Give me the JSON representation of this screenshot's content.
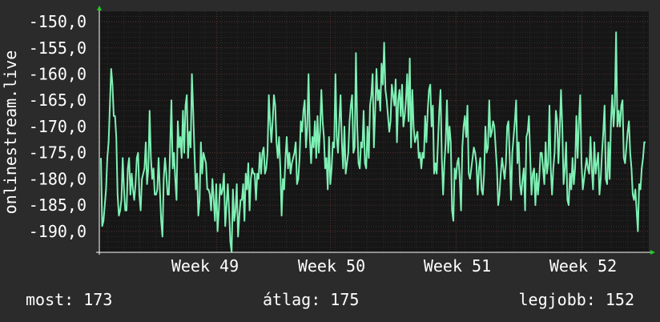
{
  "chart_data": {
    "type": "line",
    "ylabel": "onlinestream.live",
    "ylim": [
      -194,
      -148
    ],
    "y_ticks": [
      -150,
      -155,
      -160,
      -165,
      -170,
      -175,
      -180,
      -185,
      -190
    ],
    "y_tick_labels": [
      "-150,0",
      "-155,0",
      "-160,0",
      "-165,0",
      "-170,0",
      "-175,0",
      "-180,0",
      "-185,0",
      "-190,0"
    ],
    "x_tick_labels": [
      "Week 49",
      "Week 50",
      "Week 51",
      "Week 52"
    ],
    "grid": true,
    "line_color": "#7ef0b4",
    "series": [
      {
        "values": [
          -176,
          -189,
          -188,
          -185,
          -182,
          -176,
          -173,
          -166,
          -159,
          -162,
          -168,
          -168,
          -172,
          -183,
          -187,
          -186,
          -184,
          -176,
          -182,
          -186,
          -186,
          -178,
          -176,
          -183,
          -179,
          -182,
          -184,
          -181,
          -176,
          -175,
          -183,
          -186,
          -180,
          -179,
          -178,
          -173,
          -181,
          -178,
          -167,
          -176,
          -180,
          -178,
          -183,
          -183,
          -182,
          -176,
          -182,
          -188,
          -191,
          -180,
          -176,
          -179,
          -183,
          -183,
          -174,
          -165,
          -178,
          -175,
          -180,
          -184,
          -169,
          -174,
          -172,
          -176,
          -167,
          -175,
          -166,
          -164,
          -176,
          -171,
          -174,
          -160,
          -167,
          -175,
          -182,
          -179,
          -187,
          -184,
          -173,
          -179,
          -175,
          -176,
          -177,
          -182,
          -182,
          -183,
          -186,
          -180,
          -184,
          -188,
          -181,
          -190,
          -186,
          -181,
          -183,
          -182,
          -179,
          -189,
          -185,
          -181,
          -186,
          -192,
          -194,
          -182,
          -188,
          -186,
          -181,
          -191,
          -187,
          -184,
          -184,
          -181,
          -188,
          -179,
          -182,
          -177,
          -186,
          -180,
          -178,
          -179,
          -179,
          -184,
          -179,
          -180,
          -175,
          -179,
          -175,
          -174,
          -179,
          -178,
          -175,
          -164,
          -169,
          -173,
          -169,
          -164,
          -166,
          -173,
          -176,
          -172,
          -178,
          -187,
          -180,
          -182,
          -176,
          -172,
          -178,
          -175,
          -179,
          -177,
          -176,
          -175,
          -173,
          -181,
          -180,
          -176,
          -169,
          -171,
          -167,
          -165,
          -174,
          -170,
          -160,
          -172,
          -177,
          -172,
          -174,
          -169,
          -176,
          -168,
          -175,
          -171,
          -163,
          -169,
          -172,
          -178,
          -176,
          -182,
          -172,
          -181,
          -178,
          -173,
          -174,
          -160,
          -172,
          -175,
          -169,
          -164,
          -173,
          -178,
          -170,
          -179,
          -177,
          -175,
          -169,
          -166,
          -164,
          -175,
          -174,
          -156,
          -170,
          -177,
          -178,
          -173,
          -174,
          -167,
          -177,
          -178,
          -170,
          -176,
          -166,
          -164,
          -160,
          -174,
          -167,
          -159,
          -165,
          -163,
          -167,
          -158,
          -162,
          -154,
          -163,
          -165,
          -168,
          -171,
          -169,
          -162,
          -164,
          -166,
          -161,
          -173,
          -165,
          -163,
          -168,
          -162,
          -170,
          -168,
          -165,
          -160,
          -169,
          -157,
          -174,
          -163,
          -170,
          -173,
          -172,
          -171,
          -176,
          -175,
          -178,
          -175,
          -176,
          -168,
          -173,
          -167,
          -163,
          -162,
          -170,
          -166,
          -179,
          -177,
          -179,
          -173,
          -167,
          -163,
          -176,
          -183,
          -177,
          -173,
          -165,
          -175,
          -170,
          -173,
          -186,
          -188,
          -178,
          -180,
          -177,
          -176,
          -180,
          -186,
          -174,
          -170,
          -168,
          -172,
          -166,
          -179,
          -180,
          -178,
          -176,
          -174,
          -175,
          -177,
          -183,
          -178,
          -176,
          -182,
          -183,
          -179,
          -170,
          -175,
          -174,
          -165,
          -172,
          -171,
          -169,
          -170,
          -174,
          -178,
          -185,
          -183,
          -179,
          -176,
          -178,
          -180,
          -177,
          -170,
          -169,
          -176,
          -184,
          -175,
          -172,
          -169,
          -165,
          -177,
          -173,
          -181,
          -183,
          -180,
          -178,
          -186,
          -172,
          -171,
          -168,
          -176,
          -183,
          -179,
          -178,
          -185,
          -179,
          -183,
          -180,
          -175,
          -175,
          -178,
          -181,
          -173,
          -179,
          -177,
          -166,
          -178,
          -183,
          -178,
          -175,
          -167,
          -169,
          -177,
          -171,
          -163,
          -170,
          -181,
          -178,
          -173,
          -184,
          -185,
          -179,
          -182,
          -176,
          -181,
          -178,
          -168,
          -176,
          -169,
          -164,
          -177,
          -182,
          -180,
          -178,
          -176,
          -178,
          -179,
          -172,
          -178,
          -182,
          -173,
          -179,
          -177,
          -175,
          -183,
          -180,
          -175,
          -171,
          -166,
          -180,
          -181,
          -173,
          -180,
          -169,
          -164,
          -170,
          -166,
          -152,
          -170,
          -167,
          -170,
          -166,
          -165,
          -176,
          -177,
          -174,
          -171,
          -169,
          -175,
          -178,
          -183,
          -184,
          -182,
          -186,
          -190,
          -181,
          -182,
          -178,
          -176,
          -173,
          -173
        ]
      }
    ]
  },
  "stats": {
    "now": "most: 173",
    "avg": "átlag: 175",
    "best": "legjobb: 152"
  }
}
